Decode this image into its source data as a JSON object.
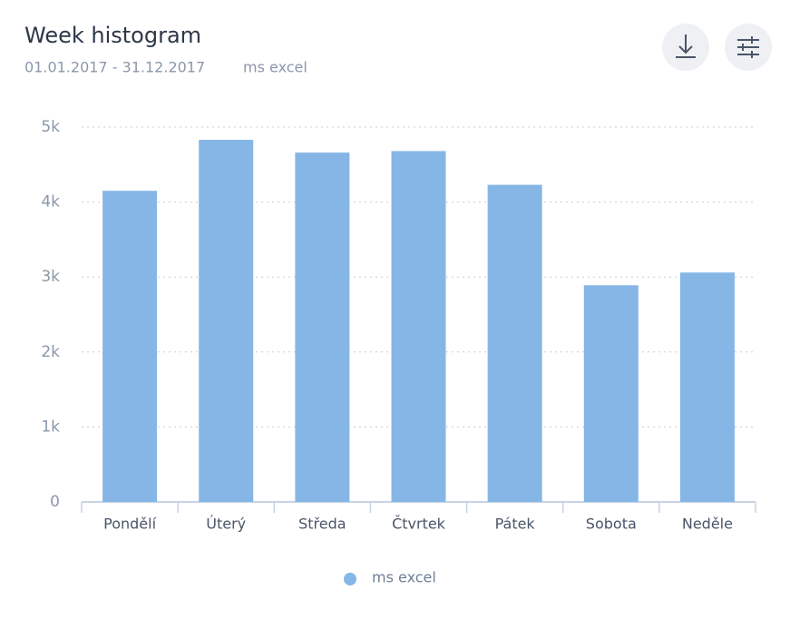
{
  "chart_data": {
    "type": "bar",
    "title": "Week histogram",
    "subtitle": "01.01.2017 - 31.12.2017",
    "categories": [
      "Pondělí",
      "Úterý",
      "Středa",
      "Čtvrtek",
      "Pátek",
      "Sobota",
      "Neděle"
    ],
    "series": [
      {
        "name": "ms excel",
        "color": "#85b6e6",
        "values": [
          4150,
          4830,
          4660,
          4680,
          4230,
          2890,
          3060
        ]
      }
    ],
    "ylim": [
      0,
      5000
    ],
    "yticks": [
      0,
      {
        "value": 1000,
        "label": "1k"
      },
      {
        "value": 2000,
        "label": "2k"
      },
      {
        "value": 3000,
        "label": "3k"
      },
      {
        "value": 4000,
        "label": "4k"
      },
      {
        "value": 5000,
        "label": "5k"
      }
    ],
    "grid": true
  }
}
